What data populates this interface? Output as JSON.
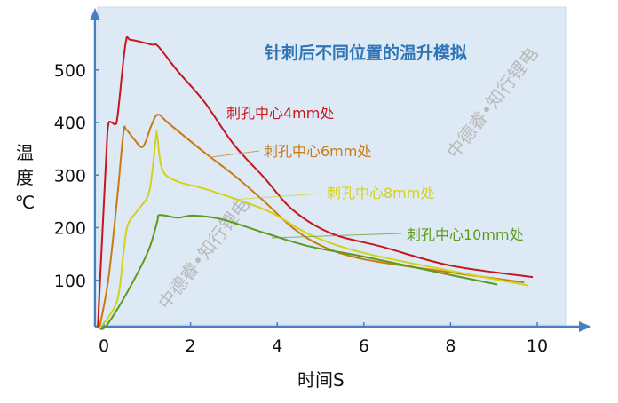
{
  "chart_data": {
    "type": "line",
    "title": "针刺后不同位置的温升模拟",
    "xlabel": "时间S",
    "ylabel": [
      "温度",
      "℃"
    ],
    "xlim": [
      -0.2,
      11
    ],
    "ylim": [
      12,
      615
    ],
    "xticks": [
      0,
      2,
      4,
      6,
      8,
      10
    ],
    "yticks": [
      100,
      200,
      300,
      400,
      500
    ],
    "grid": false,
    "background": "#dde9f5",
    "axis_color": "#4a80c2",
    "title_color": "#2e75b6",
    "series": [
      {
        "name": "刺孔中心4mm处",
        "color": "#c8161d",
        "x": [
          -0.14,
          0.05,
          0.1,
          0.18,
          0.26,
          0.32,
          0.5,
          0.62,
          1.1,
          1.25,
          1.7,
          2.32,
          3.0,
          3.7,
          4.37,
          5.25,
          6.41,
          8.0,
          9.9
        ],
        "y": [
          12,
          330,
          395,
          400,
          397,
          415,
          550,
          557,
          548,
          545,
          498,
          439,
          358,
          295,
          233,
          189,
          164,
          128,
          106
        ]
      },
      {
        "name": "刺孔中心6mm处",
        "color": "#c97a12",
        "x": [
          -0.1,
          0.1,
          0.3,
          0.45,
          0.52,
          0.7,
          0.9,
          1.1,
          1.25,
          1.5,
          2.32,
          3.0,
          3.7,
          4.37,
          5.04,
          6.0,
          8.0,
          9.7
        ],
        "y": [
          10,
          100,
          250,
          380,
          386,
          368,
          354,
          395,
          415,
          398,
          343,
          300,
          250,
          199,
          165,
          140,
          115,
          96
        ]
      },
      {
        "name": "刺孔中心8mm处",
        "color": "#d4d11a",
        "x": [
          -0.1,
          0.3,
          0.45,
          0.55,
          0.8,
          1.05,
          1.2,
          1.23,
          1.35,
          1.7,
          2.4,
          3.75,
          4.8,
          6.0,
          8.0,
          9.8
        ],
        "y": [
          8,
          60,
          150,
          205,
          235,
          270,
          370,
          376,
          310,
          288,
          272,
          233,
          185,
          152,
          118,
          90
        ]
      },
      {
        "name": "刺孔中心10mm处",
        "color": "#5c9a1b",
        "x": [
          -0.1,
          0.06,
          0.53,
          1.02,
          1.23,
          1.29,
          1.7,
          2.05,
          2.72,
          3.75,
          4.77,
          6.0,
          8.0,
          9.08
        ],
        "y": [
          8,
          14,
          76,
          155,
          211,
          224,
          219,
          223,
          216,
          189,
          164,
          145,
          110,
          92
        ]
      }
    ],
    "watermark": "中德睿•知行锂电"
  }
}
